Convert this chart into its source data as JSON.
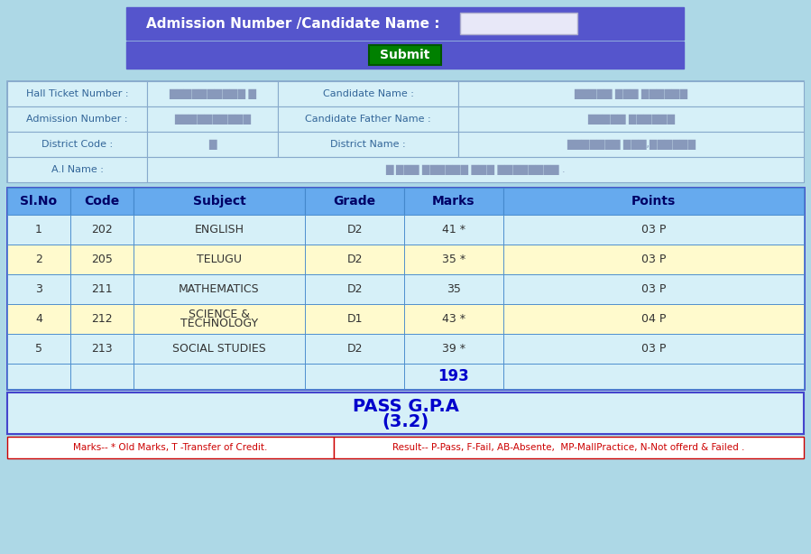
{
  "bg_color": "#add8e6",
  "top_bar_color": "#5555cc",
  "top_bar_text": "Admission Number /Candidate Name :",
  "submit_bar_color": "#5555cc",
  "submit_btn_color": "#008000",
  "submit_btn_text": "Submit",
  "input_box_color": "#e0e0f0",
  "info_label_color": "#336699",
  "info_value_color": "#8899bb",
  "info_cell_bg": "#d6f0f8",
  "info_border_color": "#88aacc",
  "table_header_color": "#66aaee",
  "table_header_text_color": "#000066",
  "table_row_even_color": "#fffacd",
  "table_row_odd_color": "#d6f0f8",
  "table_border_color": "#4488cc",
  "table_outer_border": "#4444cc",
  "cell_text_color": "#333333",
  "total_marks": "193",
  "total_color": "#0000cc",
  "result_text_line1": "PASS G.P.A",
  "result_text_line2": "(3.2)",
  "result_color": "#0000cc",
  "result_bg": "#d6f0f8",
  "result_border": "#4444cc",
  "footer_left": "Marks-- * Old Marks, T -Transfer of Credit.",
  "footer_right": "Result-- P-Pass, F-Fail, AB-Absente,  MP-MallPractice, N-Not offerd & Failed .",
  "footer_color": "#cc0000",
  "footer_bg": "#ffffff",
  "footer_border": "#cc0000",
  "table_header": [
    "Sl.No",
    "Code",
    "Subject",
    "Grade",
    "Marks",
    "Points"
  ],
  "table_rows": [
    [
      "1",
      "202",
      "ENGLISH",
      "D2",
      "41 *",
      "03 P"
    ],
    [
      "2",
      "205",
      "TELUGU",
      "D2",
      "35 *",
      "03 P"
    ],
    [
      "3",
      "211",
      "MATHEMATICS",
      "D2",
      "35",
      "03 P"
    ],
    [
      "4",
      "212",
      "SCIENCE &\nTECHNOLOGY",
      "D1",
      "43 *",
      "04 P"
    ],
    [
      "5",
      "213",
      "SOCIAL STUDIES",
      "D2",
      "39 *",
      "03 P"
    ]
  ]
}
